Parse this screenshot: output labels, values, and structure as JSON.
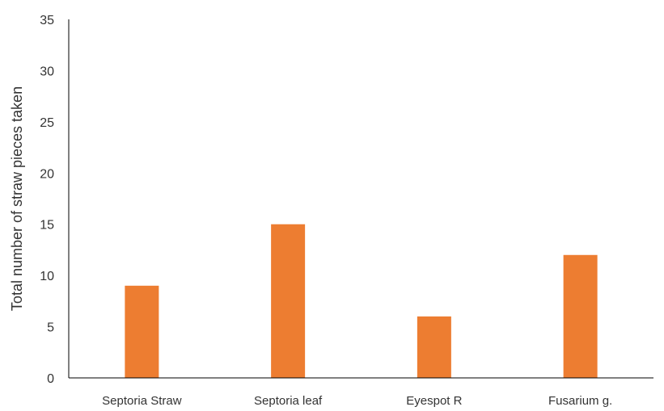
{
  "chart_data": {
    "type": "bar",
    "categories": [
      "Septoria Straw",
      "Septoria leaf",
      "Eyespot R",
      "Fusarium g."
    ],
    "values": [
      9,
      15,
      6,
      12
    ],
    "title": "",
    "xlabel": "",
    "ylabel": "Total number of straw pieces taken",
    "ylim": [
      0,
      35
    ],
    "yticks": [
      "0",
      "5",
      "10",
      "15",
      "20",
      "25",
      "30",
      "35"
    ],
    "grid": false,
    "legend": "none",
    "bar_color": "#ED7D31",
    "axis_color": "#000000"
  }
}
